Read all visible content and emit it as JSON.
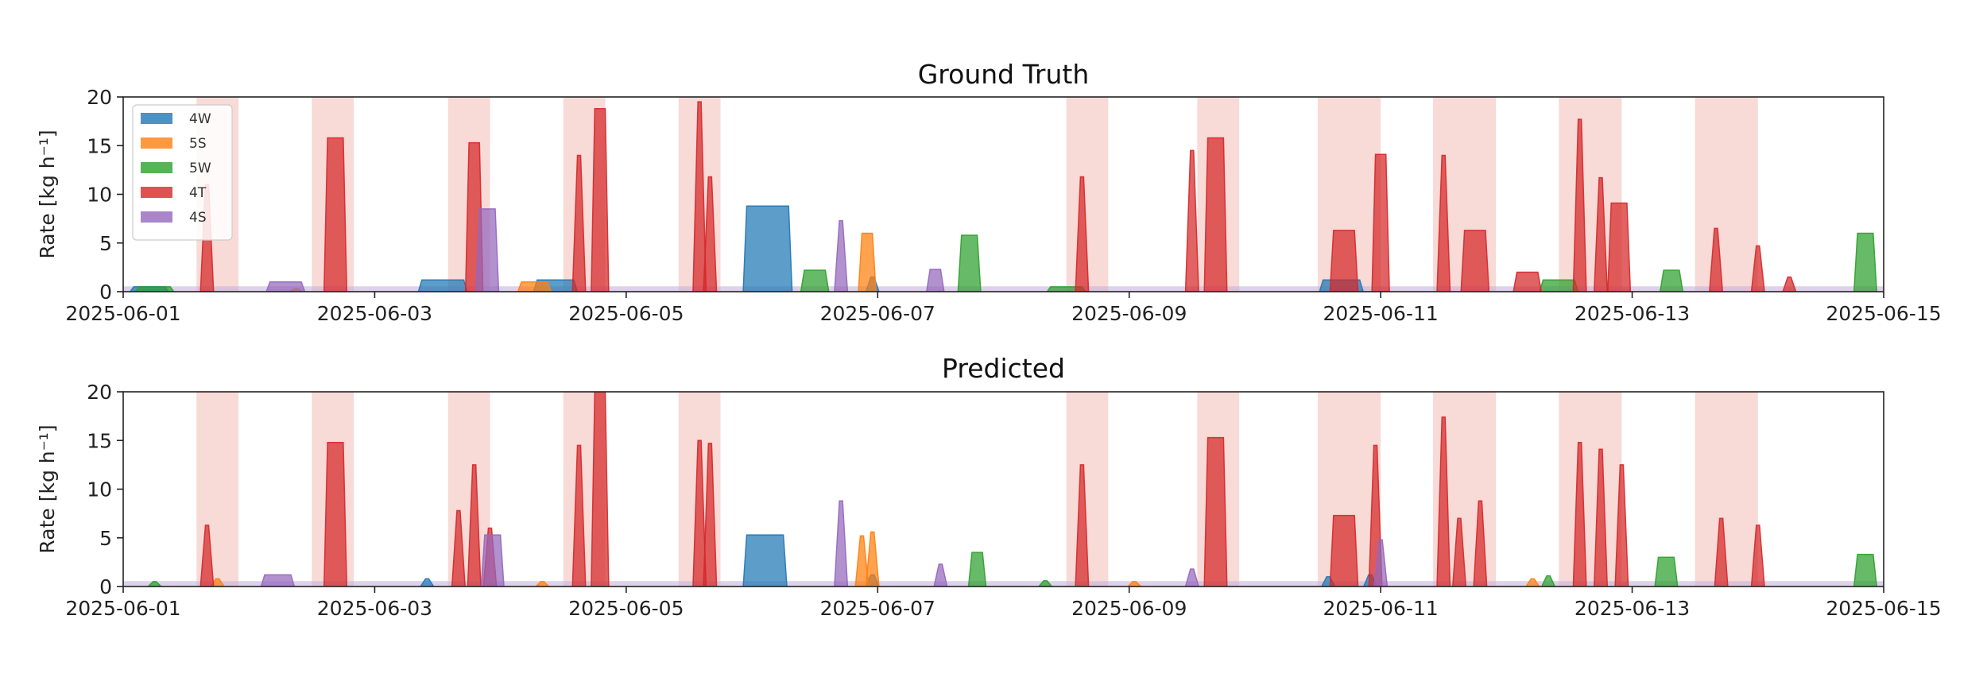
{
  "chart_data": [
    {
      "type": "area",
      "title": "Ground Truth",
      "ylabel": "Rate [kg h⁻¹]",
      "xlabel": "",
      "x_range": [
        "2025-06-01",
        "2025-06-15"
      ],
      "xticks": [
        "2025-06-01",
        "2025-06-03",
        "2025-06-05",
        "2025-06-07",
        "2025-06-09",
        "2025-06-11",
        "2025-06-13",
        "2025-06-15"
      ],
      "ylim": [
        0,
        20
      ],
      "yticks": [
        0,
        5,
        10,
        15,
        20
      ],
      "grid": false,
      "legend": {
        "placement": "top-left",
        "entries": [
          "4W",
          "5S",
          "5W",
          "4T",
          "4S"
        ]
      },
      "highlight_intervals": [
        [
          "2025-06-01 14:00",
          "2025-06-01 22:00"
        ],
        [
          "2025-06-02 12:00",
          "2025-06-02 20:00"
        ],
        [
          "2025-06-03 14:00",
          "2025-06-03 22:00"
        ],
        [
          "2025-06-04 12:00",
          "2025-06-04 20:00"
        ],
        [
          "2025-06-05 10:00",
          "2025-06-05 18:00"
        ],
        [
          "2025-06-08 12:00",
          "2025-06-08 20:00"
        ],
        [
          "2025-06-09 13:00",
          "2025-06-09 21:00"
        ],
        [
          "2025-06-10 12:00",
          "2025-06-11 00:00"
        ],
        [
          "2025-06-11 10:00",
          "2025-06-11 22:00"
        ],
        [
          "2025-06-12 10:00",
          "2025-06-12 22:00"
        ],
        [
          "2025-06-13 12:00",
          "2025-06-14 00:00"
        ]
      ],
      "series": [
        {
          "name": "4W",
          "color": "#1f77b4",
          "points": [
            [
              "2025-06-01 02:00",
              0.5
            ],
            [
              "2025-06-01 08:00",
              0.5
            ],
            [
              "2025-06-03 09:00",
              1.2
            ],
            [
              "2025-06-03 17:00",
              1.2
            ],
            [
              "2025-06-04 07:00",
              1.2
            ],
            [
              "2025-06-04 14:00",
              1.2
            ],
            [
              "2025-06-05 23:00",
              8.8
            ],
            [
              "2025-06-06 07:00",
              8.8
            ],
            [
              "2025-06-06 23:00",
              1.5
            ],
            [
              "2025-06-10 13:00",
              1.2
            ],
            [
              "2025-06-10 20:00",
              1.2
            ]
          ]
        },
        {
          "name": "5S",
          "color": "#ff7f0e",
          "points": [
            [
              "2025-06-02 09:00",
              0.3
            ],
            [
              "2025-06-04 04:00",
              1.0
            ],
            [
              "2025-06-04 09:00",
              1.0
            ],
            [
              "2025-06-06 21:00",
              6.0
            ],
            [
              "2025-06-06 23:00",
              6.0
            ]
          ]
        },
        {
          "name": "5W",
          "color": "#2ca02c",
          "points": [
            [
              "2025-06-01 03:00",
              0.5
            ],
            [
              "2025-06-01 09:00",
              0.5
            ],
            [
              "2025-06-06 10:00",
              2.2
            ],
            [
              "2025-06-06 14:00",
              2.2
            ],
            [
              "2025-06-07 16:00",
              5.8
            ],
            [
              "2025-06-07 19:00",
              5.8
            ],
            [
              "2025-06-08 09:00",
              0.5
            ],
            [
              "2025-06-08 15:00",
              0.5
            ],
            [
              "2025-06-12 07:00",
              1.2
            ],
            [
              "2025-06-12 13:00",
              1.2
            ],
            [
              "2025-06-13 06:00",
              2.2
            ],
            [
              "2025-06-13 09:00",
              2.2
            ],
            [
              "2025-06-14 19:00",
              6.0
            ],
            [
              "2025-06-14 22:00",
              6.0
            ]
          ]
        },
        {
          "name": "4T",
          "color": "#d62728",
          "points": [
            [
              "2025-06-01 16:00",
              11.0
            ],
            [
              "2025-06-02 15:00",
              15.8
            ],
            [
              "2025-06-02 18:00",
              15.8
            ],
            [
              "2025-06-03 18:00",
              15.3
            ],
            [
              "2025-06-03 20:00",
              15.3
            ],
            [
              "2025-06-04 15:00",
              14.0
            ],
            [
              "2025-06-04 18:00",
              18.8
            ],
            [
              "2025-06-04 20:00",
              18.8
            ],
            [
              "2025-06-05 14:00",
              19.5
            ],
            [
              "2025-06-05 16:00",
              11.8
            ],
            [
              "2025-06-08 15:00",
              11.8
            ],
            [
              "2025-06-09 12:00",
              14.5
            ],
            [
              "2025-06-09 15:00",
              15.8
            ],
            [
              "2025-06-09 18:00",
              15.8
            ],
            [
              "2025-06-10 15:00",
              6.3
            ],
            [
              "2025-06-10 19:00",
              6.3
            ],
            [
              "2025-06-10 23:00",
              14.1
            ],
            [
              "2025-06-11 01:00",
              14.1
            ],
            [
              "2025-06-11 12:00",
              14.0
            ],
            [
              "2025-06-11 16:00",
              6.3
            ],
            [
              "2025-06-11 20:00",
              6.3
            ],
            [
              "2025-06-12 02:00",
              2.0
            ],
            [
              "2025-06-12 06:00",
              2.0
            ],
            [
              "2025-06-12 14:00",
              17.7
            ],
            [
              "2025-06-12 18:00",
              11.7
            ],
            [
              "2025-06-12 20:00",
              9.1
            ],
            [
              "2025-06-12 23:00",
              9.1
            ],
            [
              "2025-06-13 16:00",
              6.5
            ],
            [
              "2025-06-14 00:00",
              4.7
            ],
            [
              "2025-06-14 06:00",
              1.5
            ]
          ]
        },
        {
          "name": "4S",
          "color": "#9467bd",
          "points": [
            [
              "2025-06-02 04:00",
              1.0
            ],
            [
              "2025-06-02 10:00",
              1.0
            ],
            [
              "2025-06-03 20:00",
              8.5
            ],
            [
              "2025-06-03 23:00",
              8.5
            ],
            [
              "2025-06-06 17:00",
              7.3
            ],
            [
              "2025-06-07 10:00",
              2.3
            ],
            [
              "2025-06-07 12:00",
              2.3
            ]
          ]
        }
      ]
    },
    {
      "type": "area",
      "title": "Predicted",
      "ylabel": "Rate [kg h⁻¹]",
      "xlabel": "",
      "x_range": [
        "2025-06-01",
        "2025-06-15"
      ],
      "xticks": [
        "2025-06-01",
        "2025-06-03",
        "2025-06-05",
        "2025-06-07",
        "2025-06-09",
        "2025-06-11",
        "2025-06-13",
        "2025-06-15"
      ],
      "ylim": [
        0,
        20
      ],
      "yticks": [
        0,
        5,
        10,
        15,
        20
      ],
      "grid": false,
      "highlight_intervals": [
        [
          "2025-06-01 14:00",
          "2025-06-01 22:00"
        ],
        [
          "2025-06-02 12:00",
          "2025-06-02 20:00"
        ],
        [
          "2025-06-03 14:00",
          "2025-06-03 22:00"
        ],
        [
          "2025-06-04 12:00",
          "2025-06-04 20:00"
        ],
        [
          "2025-06-05 10:00",
          "2025-06-05 18:00"
        ],
        [
          "2025-06-08 12:00",
          "2025-06-08 20:00"
        ],
        [
          "2025-06-09 13:00",
          "2025-06-09 21:00"
        ],
        [
          "2025-06-10 12:00",
          "2025-06-11 00:00"
        ],
        [
          "2025-06-11 10:00",
          "2025-06-11 22:00"
        ],
        [
          "2025-06-12 10:00",
          "2025-06-12 22:00"
        ],
        [
          "2025-06-13 12:00",
          "2025-06-14 00:00"
        ]
      ],
      "series": [
        {
          "name": "4W",
          "color": "#1f77b4",
          "points": [
            [
              "2025-06-03 10:00",
              0.8
            ],
            [
              "2025-06-05 23:00",
              5.3
            ],
            [
              "2025-06-06 06:00",
              5.3
            ],
            [
              "2025-06-06 23:00",
              1.2
            ],
            [
              "2025-06-10 14:00",
              1.0
            ],
            [
              "2025-06-10 22:00",
              1.2
            ]
          ]
        },
        {
          "name": "5S",
          "color": "#ff7f0e",
          "points": [
            [
              "2025-06-01 18:00",
              0.8
            ],
            [
              "2025-06-04 08:00",
              0.5
            ],
            [
              "2025-06-06 21:00",
              5.2
            ],
            [
              "2025-06-06 23:00",
              5.6
            ],
            [
              "2025-06-09 01:00",
              0.5
            ],
            [
              "2025-06-12 05:00",
              0.8
            ]
          ]
        },
        {
          "name": "5W",
          "color": "#2ca02c",
          "points": [
            [
              "2025-06-01 06:00",
              0.5
            ],
            [
              "2025-06-07 18:00",
              3.5
            ],
            [
              "2025-06-07 20:00",
              3.5
            ],
            [
              "2025-06-08 08:00",
              0.6
            ],
            [
              "2025-06-12 08:00",
              1.1
            ],
            [
              "2025-06-13 05:00",
              3.0
            ],
            [
              "2025-06-13 08:00",
              3.0
            ],
            [
              "2025-06-14 19:00",
              3.3
            ],
            [
              "2025-06-14 22:00",
              3.3
            ]
          ]
        },
        {
          "name": "4T",
          "color": "#d62728",
          "points": [
            [
              "2025-06-01 16:00",
              6.3
            ],
            [
              "2025-06-02 15:00",
              14.8
            ],
            [
              "2025-06-02 18:00",
              14.8
            ],
            [
              "2025-06-03 16:00",
              7.8
            ],
            [
              "2025-06-03 19:00",
              12.5
            ],
            [
              "2025-06-03 22:00",
              6.0
            ],
            [
              "2025-06-04 15:00",
              14.5
            ],
            [
              "2025-06-04 18:00",
              20.0
            ],
            [
              "2025-06-04 20:00",
              20.0
            ],
            [
              "2025-06-05 14:00",
              15.0
            ],
            [
              "2025-06-05 16:00",
              14.7
            ],
            [
              "2025-06-08 15:00",
              12.5
            ],
            [
              "2025-06-09 15:00",
              15.3
            ],
            [
              "2025-06-09 18:00",
              15.3
            ],
            [
              "2025-06-10 15:00",
              7.3
            ],
            [
              "2025-06-10 19:00",
              7.3
            ],
            [
              "2025-06-10 23:00",
              14.5
            ],
            [
              "2025-06-11 12:00",
              17.4
            ],
            [
              "2025-06-11 15:00",
              7.0
            ],
            [
              "2025-06-11 19:00",
              8.8
            ],
            [
              "2025-06-12 14:00",
              14.8
            ],
            [
              "2025-06-12 18:00",
              14.1
            ],
            [
              "2025-06-12 22:00",
              12.5
            ],
            [
              "2025-06-13 17:00",
              7.0
            ],
            [
              "2025-06-14 00:00",
              6.3
            ]
          ]
        },
        {
          "name": "4S",
          "color": "#9467bd",
          "points": [
            [
              "2025-06-02 03:00",
              1.2
            ],
            [
              "2025-06-02 08:00",
              1.2
            ],
            [
              "2025-06-03 21:00",
              5.3
            ],
            [
              "2025-06-04 00:00",
              5.3
            ],
            [
              "2025-06-06 17:00",
              8.8
            ],
            [
              "2025-06-07 12:00",
              2.3
            ],
            [
              "2025-06-09 12:00",
              1.8
            ],
            [
              "2025-06-11 00:00",
              4.8
            ]
          ]
        }
      ]
    }
  ]
}
